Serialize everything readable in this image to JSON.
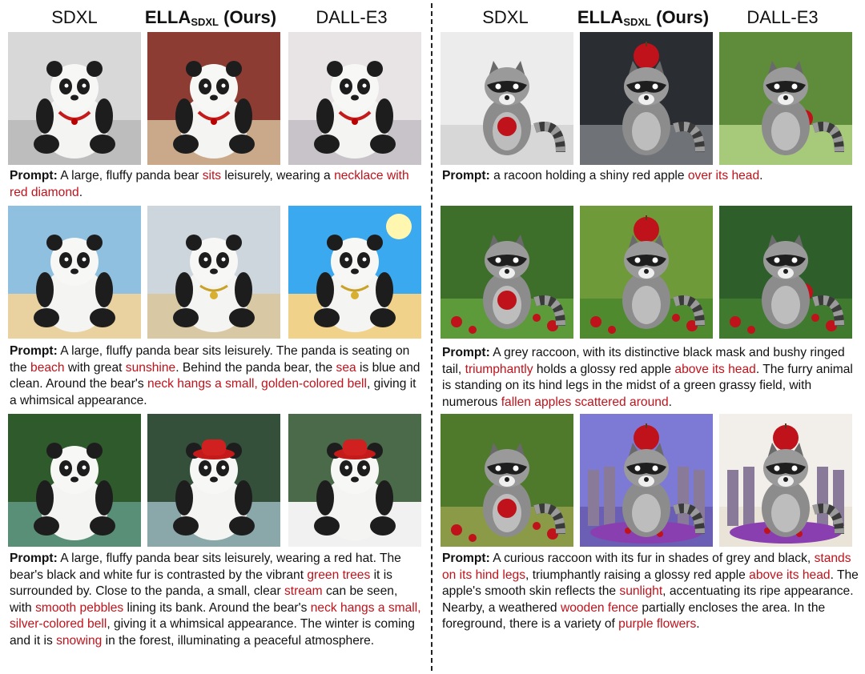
{
  "headers": {
    "sdxl": "SDXL",
    "ella_main": "ELLA",
    "ella_sub": "SDXL",
    "ella_suffix": " (Ours)",
    "dalle": "DALL-E3"
  },
  "prompt_label": "Prompt:",
  "panels": [
    {
      "images": [
        "panda-sdxl-necklace",
        "panda-ella-necklace",
        "panda-dalle-necklace"
      ],
      "segments": [
        {
          "t": " A large, fluffy panda bear ",
          "r": false
        },
        {
          "t": "sits",
          "r": true
        },
        {
          "t": " leisurely, wearing a ",
          "r": false
        },
        {
          "t": "necklace with red diamond",
          "r": true
        },
        {
          "t": ".",
          "r": false
        }
      ]
    },
    {
      "images": [
        "panda-sdxl-beach",
        "panda-ella-beach",
        "panda-dalle-beach"
      ],
      "segments": [
        {
          "t": " A large, fluffy panda bear sits leisurely. The panda is seating on the ",
          "r": false
        },
        {
          "t": "beach",
          "r": true
        },
        {
          "t": " with great ",
          "r": false
        },
        {
          "t": "sunshine",
          "r": true
        },
        {
          "t": ". Behind the panda bear, the ",
          "r": false
        },
        {
          "t": "sea",
          "r": true
        },
        {
          "t": " is blue and clean. Around the bear's ",
          "r": false
        },
        {
          "t": "neck hangs a small, golden-colored bell",
          "r": true
        },
        {
          "t": ", giving it a whimsical appearance.",
          "r": false
        }
      ]
    },
    {
      "images": [
        "panda-sdxl-forest",
        "panda-ella-forest",
        "panda-dalle-forest"
      ],
      "segments": [
        {
          "t": " A large, fluffy panda bear sits leisurely, wearing a red hat. The bear's black and white fur is contrasted by the vibrant ",
          "r": false
        },
        {
          "t": "green trees",
          "r": true
        },
        {
          "t": " it is surrounded by. Close to the panda, a small, clear ",
          "r": false
        },
        {
          "t": "stream",
          "r": true
        },
        {
          "t": " can be seen, with ",
          "r": false
        },
        {
          "t": "smooth pebbles",
          "r": true
        },
        {
          "t": " lining its bank. Around the bear's ",
          "r": false
        },
        {
          "t": "neck hangs a small, silver-colored bell",
          "r": true
        },
        {
          "t": ", giving it a whimsical appearance. The winter is coming and it is ",
          "r": false
        },
        {
          "t": "snowing",
          "r": true
        },
        {
          "t": " in the forest, illuminating a peaceful atmosphere.",
          "r": false
        }
      ]
    },
    {
      "images": [
        "raccoon-sdxl-apple",
        "raccoon-ella-apple",
        "raccoon-dalle-apple"
      ],
      "segments": [
        {
          "t": " a racoon holding a shiny red apple ",
          "r": false
        },
        {
          "t": "over its head",
          "r": true
        },
        {
          "t": ".",
          "r": false
        }
      ]
    },
    {
      "images": [
        "raccoon-sdxl-field",
        "raccoon-ella-field",
        "raccoon-dalle-field"
      ],
      "segments": [
        {
          "t": " A grey raccoon, with its distinctive black mask and bushy ringed tail, ",
          "r": false
        },
        {
          "t": "triumphantly",
          "r": true
        },
        {
          "t": " holds a glossy red apple ",
          "r": false
        },
        {
          "t": "above its head",
          "r": true
        },
        {
          "t": ". The furry animal is standing on its hind legs in the midst of a green grassy field, with numerous ",
          "r": false
        },
        {
          "t": "fallen apples scattered around",
          "r": true
        },
        {
          "t": ".",
          "r": false
        }
      ]
    },
    {
      "images": [
        "raccoon-sdxl-fence",
        "raccoon-ella-fence",
        "raccoon-dalle-fence"
      ],
      "segments": [
        {
          "t": " A curious raccoon with its fur in shades of grey and black, ",
          "r": false
        },
        {
          "t": "stands on its hind legs",
          "r": true
        },
        {
          "t": ", triumphantly raising a glossy red apple ",
          "r": false
        },
        {
          "t": "above its head",
          "r": true
        },
        {
          "t": ". The apple's smooth skin reflects the ",
          "r": false
        },
        {
          "t": "sunlight",
          "r": true
        },
        {
          "t": ", accentuating its ripe appearance. Nearby, a weathered ",
          "r": false
        },
        {
          "t": "wooden fence",
          "r": true
        },
        {
          "t": " partially encloses the area. In the foreground, there is a variety of ",
          "r": false
        },
        {
          "t": "purple flowers",
          "r": true
        },
        {
          "t": ".",
          "r": false
        }
      ]
    }
  ],
  "colors": {
    "highlight": "#c0121b",
    "text": "#111111"
  }
}
